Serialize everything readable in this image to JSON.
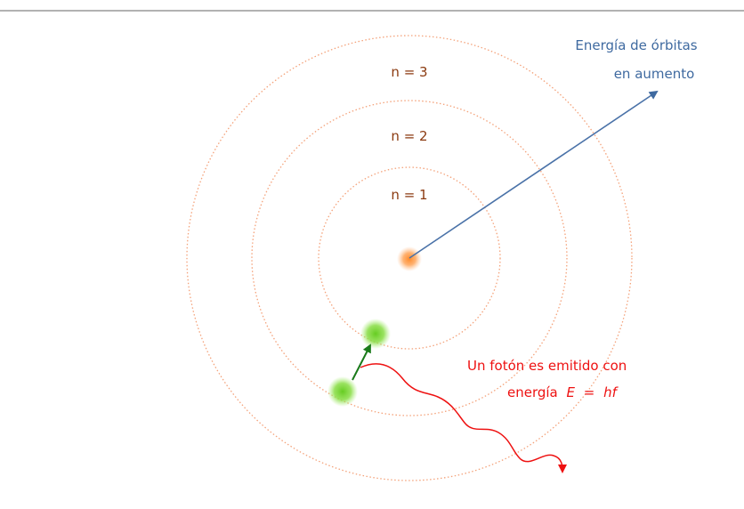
{
  "energy_label": {
    "line1": "Energía de órbitas",
    "line2": "en aumento"
  },
  "orbits": [
    {
      "label": "n = 1"
    },
    {
      "label": "n = 2"
    },
    {
      "label": "n = 3"
    }
  ],
  "photon_label": {
    "line1": "Un fotón es emitido con",
    "line2_prefix": "energía",
    "symbol_e": "E",
    "equals": "=",
    "symbol_hf": "hf"
  }
}
